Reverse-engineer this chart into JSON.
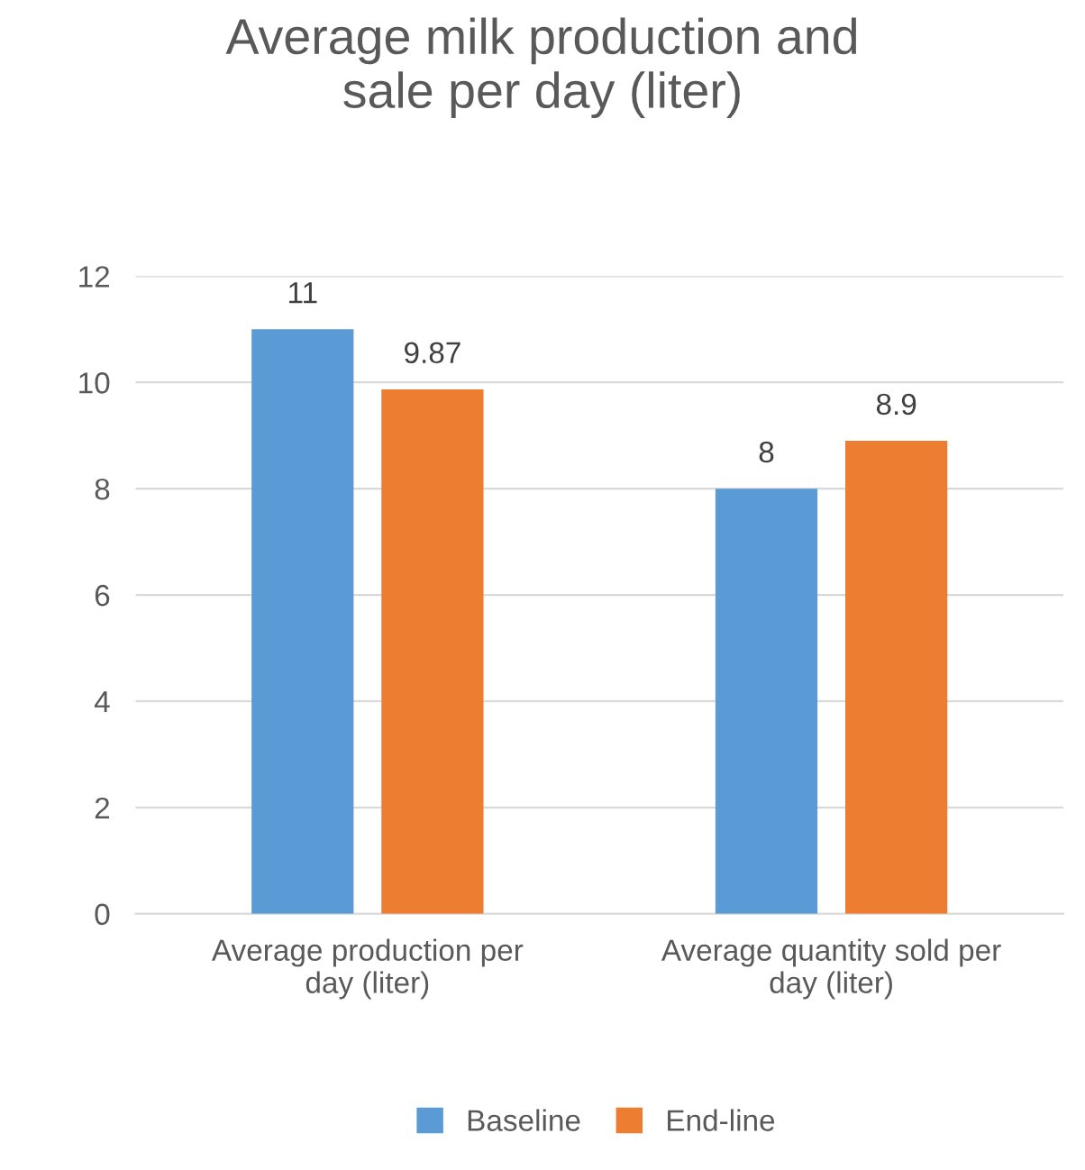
{
  "chart_data": {
    "type": "bar",
    "title": "Average milk production and\nsale per day (liter)",
    "categories": [
      "Average production per\nday (liter)",
      "Average quantity sold per\nday (liter)"
    ],
    "series": [
      {
        "name": "Baseline",
        "color": "#5b9bd5",
        "values": [
          11,
          8
        ]
      },
      {
        "name": "End-line",
        "color": "#ed7d31",
        "values": [
          9.87,
          8.9
        ]
      }
    ],
    "ylim": [
      0,
      12
    ],
    "yticks": [
      0,
      2,
      4,
      6,
      8,
      10,
      12
    ],
    "grid": "y",
    "legend": "bottom",
    "data_labels": true
  }
}
